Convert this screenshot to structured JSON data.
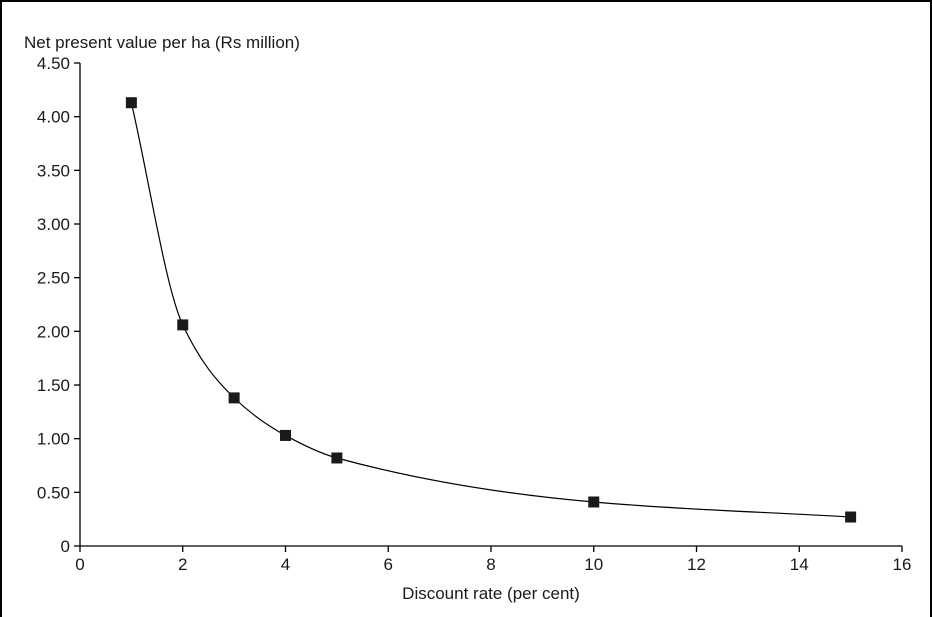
{
  "chart_data": {
    "type": "line",
    "ylabel": "Net present value per ha (Rs million)",
    "xlabel": "Discount rate (per cent)",
    "xlim": [
      0,
      16
    ],
    "ylim": [
      0,
      4.5
    ],
    "xticks": [
      "0",
      "2",
      "4",
      "6",
      "8",
      "10",
      "12",
      "14",
      "16"
    ],
    "yticks": [
      "0",
      "0.50",
      "1.00",
      "1.50",
      "2.00",
      "2.50",
      "3.00",
      "3.50",
      "4.00",
      "4.50"
    ],
    "grid": false,
    "legend": "none",
    "series": [
      {
        "marker": "square",
        "x": [
          1,
          2,
          3,
          4,
          5,
          10,
          15
        ],
        "y": [
          4.13,
          2.06,
          1.38,
          1.03,
          0.82,
          0.41,
          0.27
        ]
      }
    ],
    "colors": {
      "line": "#000000",
      "marker": "#1a1a1a"
    }
  }
}
